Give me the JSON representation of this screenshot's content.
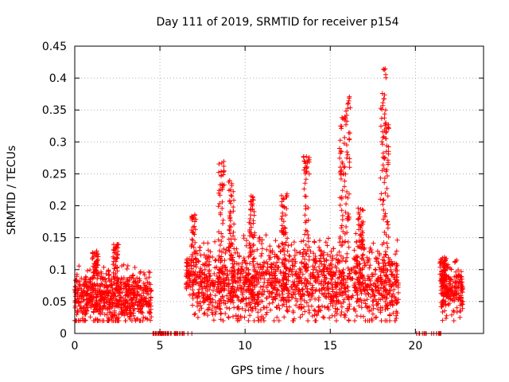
{
  "chart_data": {
    "type": "scatter",
    "title": "Day 111 of 2019, SRMTID for receiver p154",
    "xlabel": "GPS time / hours",
    "ylabel": "SRMTID / TECUs",
    "xlim": [
      0,
      24
    ],
    "ylim": [
      0,
      0.45
    ],
    "xticks": [
      0,
      5,
      10,
      15,
      20
    ],
    "xtick_labels": [
      "0",
      "5",
      "10",
      "15",
      "20"
    ],
    "yticks": [
      0,
      0.05,
      0.1,
      0.15,
      0.2,
      0.25,
      0.3,
      0.35,
      0.4,
      0.45
    ],
    "ytick_labels": [
      "0",
      "0.05",
      "0.1",
      "0.15",
      "0.2",
      "0.25",
      "0.3",
      "0.35",
      "0.4",
      "0.45"
    ],
    "grid": true,
    "marker": "plus",
    "color": "#ff0000",
    "segments": [
      {
        "x_start": 0.0,
        "x_end": 4.5,
        "baseline": 0.055,
        "spread": 0.035,
        "n": 700
      },
      {
        "x_start": 4.5,
        "x_end": 6.9,
        "baseline": 0.0,
        "spread": 0.0,
        "n": 50
      },
      {
        "x_start": 6.9,
        "x_end": 19.0,
        "baseline": 0.08,
        "spread": 0.05,
        "n": 1600
      },
      {
        "x_start": 20.0,
        "x_end": 21.5,
        "baseline": 0.0,
        "spread": 0.0,
        "n": 18
      },
      {
        "x_start": 21.5,
        "x_end": 22.8,
        "baseline": 0.07,
        "spread": 0.035,
        "n": 220
      }
    ],
    "spikes": [
      {
        "x": 1.2,
        "y_max": 0.13
      },
      {
        "x": 2.4,
        "y_max": 0.14
      },
      {
        "x": 6.7,
        "y_max": 0.12
      },
      {
        "x": 7.0,
        "y_max": 0.19
      },
      {
        "x": 8.6,
        "y_max": 0.275
      },
      {
        "x": 9.2,
        "y_max": 0.24
      },
      {
        "x": 10.4,
        "y_max": 0.225
      },
      {
        "x": 12.3,
        "y_max": 0.22
      },
      {
        "x": 13.6,
        "y_max": 0.28
      },
      {
        "x": 15.7,
        "y_max": 0.34
      },
      {
        "x": 16.0,
        "y_max": 0.375
      },
      {
        "x": 16.8,
        "y_max": 0.2
      },
      {
        "x": 18.1,
        "y_max": 0.415
      },
      {
        "x": 18.3,
        "y_max": 0.33
      },
      {
        "x": 21.6,
        "y_max": 0.12
      }
    ]
  }
}
